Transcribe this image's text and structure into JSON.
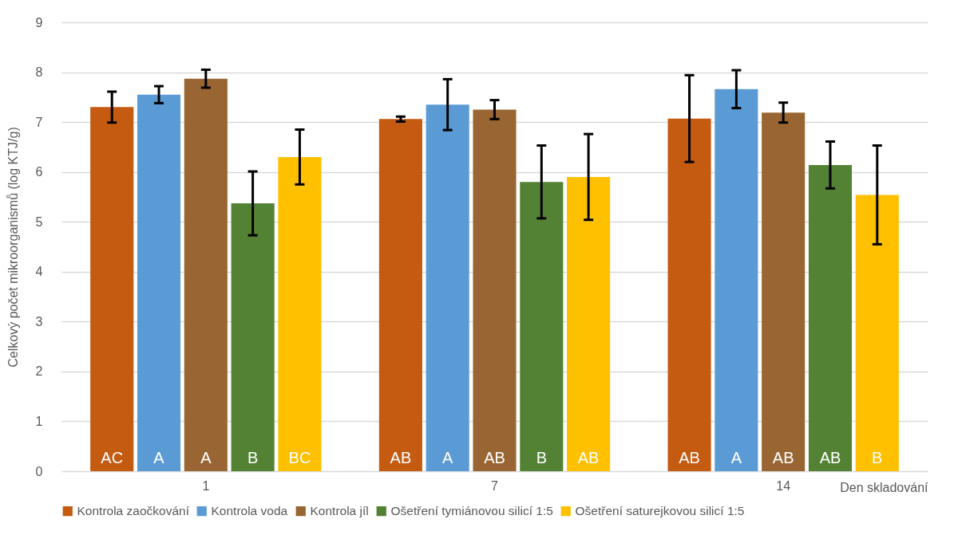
{
  "chart_data": {
    "type": "bar",
    "xlabel": "Den skladování",
    "ylabel": "Celkový počet mikroorganismů (log KTJ/g)",
    "categories": [
      "1",
      "7",
      "14"
    ],
    "ylim": [
      0,
      9
    ],
    "yticks": [
      0,
      1,
      2,
      3,
      4,
      5,
      6,
      7,
      8,
      9
    ],
    "grid": "y",
    "legend": "bottom",
    "series": [
      {
        "name": "Kontrola zaočkování",
        "color": "#c55a11",
        "values": [
          7.3,
          7.06,
          7.07
        ],
        "errors": [
          0.31,
          0.05,
          0.87
        ],
        "value_labels": [
          "AC",
          "AB",
          "AB"
        ]
      },
      {
        "name": "Kontrola voda",
        "color": "#5b9bd5",
        "values": [
          7.55,
          7.35,
          7.66
        ],
        "errors": [
          0.17,
          0.51,
          0.38
        ],
        "value_labels": [
          "A",
          "A",
          "A"
        ]
      },
      {
        "name": "Kontrola jíl",
        "color": "#996633",
        "values": [
          7.87,
          7.25,
          7.19
        ],
        "errors": [
          0.18,
          0.19,
          0.2
        ],
        "value_labels": [
          "A",
          "AB",
          "AB"
        ]
      },
      {
        "name": "Ošetření tymiánovou silicí 1:5",
        "color": "#548235",
        "values": [
          5.37,
          5.8,
          6.14
        ],
        "errors": [
          0.64,
          0.73,
          0.47
        ],
        "value_labels": [
          "B",
          "B",
          "AB"
        ]
      },
      {
        "name": "Ošetření saturejkovou silicí 1:5",
        "color": "#ffc000",
        "values": [
          6.3,
          5.9,
          5.54
        ],
        "errors": [
          0.55,
          0.86,
          0.99
        ],
        "value_labels": [
          "BC",
          "AB",
          "B"
        ]
      }
    ]
  }
}
